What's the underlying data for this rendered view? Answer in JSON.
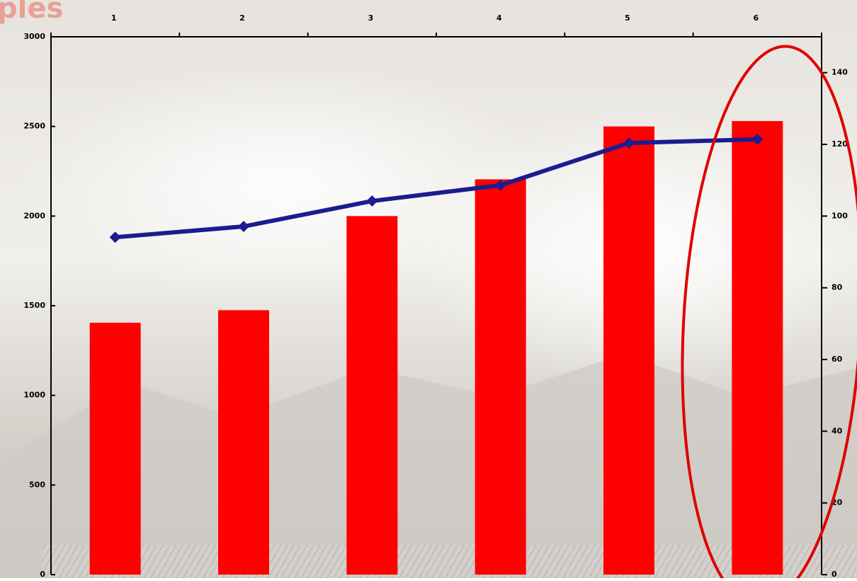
{
  "chart_data": {
    "type": "bar",
    "title": "ples",
    "categories": [
      "1",
      "2",
      "3",
      "4",
      "5",
      "6"
    ],
    "series": [
      {
        "type": "bar",
        "color": "#ff0000",
        "values": [
          1405,
          1475,
          2000,
          2205,
          2500,
          2530
        ]
      },
      {
        "type": "line",
        "axis": "y2",
        "color": "#1c1c8f",
        "values": [
          94.1,
          97.1,
          104.2,
          108.6,
          120.4,
          121.4
        ]
      }
    ],
    "ylim": [
      0,
      3000
    ],
    "yticks": [
      0,
      500,
      1000,
      1500,
      2000,
      2500,
      3000
    ],
    "y2lim": [
      0,
      150
    ],
    "y2ticks": [
      0,
      20,
      40,
      60,
      80,
      100,
      120,
      140
    ]
  }
}
